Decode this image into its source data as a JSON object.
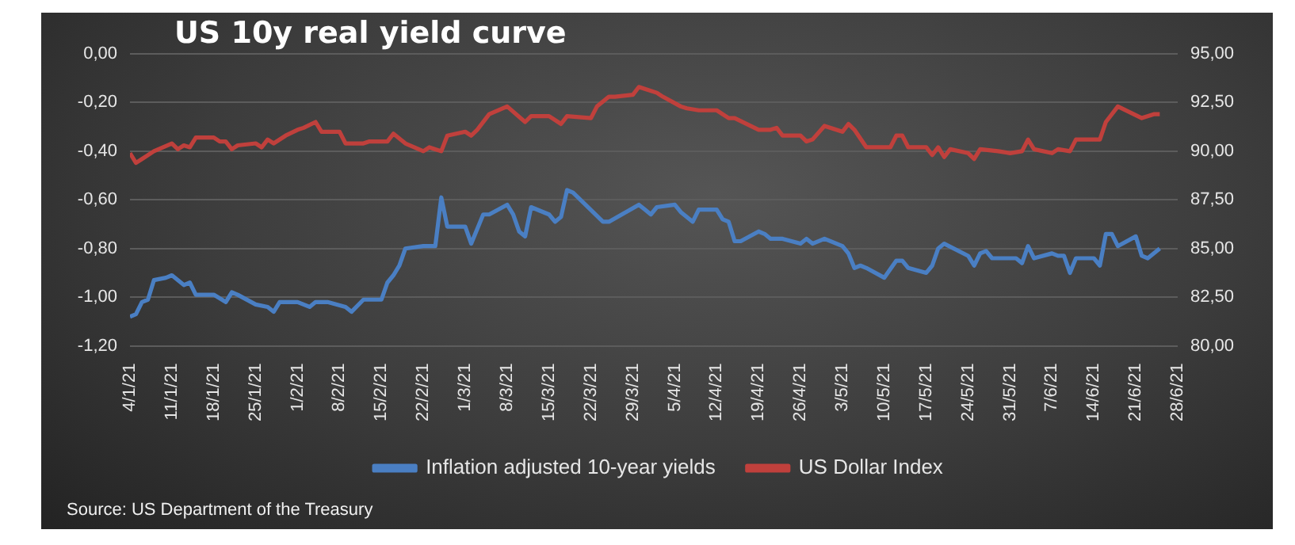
{
  "chart_data": {
    "type": "line",
    "title": "US 10y real yield curve",
    "annotations": [
      "Source: US Department of the Treasury"
    ],
    "xlim": [
      "--01-04",
      "--06-28"
    ],
    "xticks": [
      {
        "value": "--01-04",
        "label": "4/1/21"
      },
      {
        "value": "--01-11",
        "label": "11/1/21"
      },
      {
        "value": "--01-18",
        "label": "18/1/21"
      },
      {
        "value": "--01-25",
        "label": "25/1/21"
      },
      {
        "value": "--02-01",
        "label": "1/2/21"
      },
      {
        "value": "--02-08",
        "label": "8/2/21"
      },
      {
        "value": "--02-15",
        "label": "15/2/21"
      },
      {
        "value": "--02-22",
        "label": "22/2/21"
      },
      {
        "value": "--03-01",
        "label": "1/3/21"
      },
      {
        "value": "--03-08",
        "label": "8/3/21"
      },
      {
        "value": "--03-15",
        "label": "15/3/21"
      },
      {
        "value": "--03-22",
        "label": "22/3/21"
      },
      {
        "value": "--03-29",
        "label": "29/3/21"
      },
      {
        "value": "--04-05",
        "label": "5/4/21"
      },
      {
        "value": "--04-12",
        "label": "12/4/21"
      },
      {
        "value": "--04-19",
        "label": "19/4/21"
      },
      {
        "value": "--04-26",
        "label": "26/4/21"
      },
      {
        "value": "--05-03",
        "label": "3/5/21"
      },
      {
        "value": "--05-10",
        "label": "10/5/21"
      },
      {
        "value": "--05-17",
        "label": "17/5/21"
      },
      {
        "value": "--05-24",
        "label": "24/5/21"
      },
      {
        "value": "--05-31",
        "label": "31/5/21"
      },
      {
        "value": "--06-07",
        "label": "7/6/21"
      },
      {
        "value": "--06-14",
        "label": "14/6/21"
      },
      {
        "value": "--06-21",
        "label": "21/6/21"
      },
      {
        "value": "--06-28",
        "label": "28/6/21"
      }
    ],
    "ylim": [
      -1.2,
      0
    ],
    "yticks": [
      {
        "value": -1.2,
        "label": "-1,20"
      },
      {
        "value": -1,
        "label": "-1,00"
      },
      {
        "value": -0.8,
        "label": "-0,80"
      },
      {
        "value": -0.6,
        "label": "-0,60"
      },
      {
        "value": -0.4,
        "label": "-0,40"
      },
      {
        "value": -0.2,
        "label": "-0,20"
      },
      {
        "value": 0,
        "label": "0,00"
      }
    ],
    "y2lim": [
      80,
      95
    ],
    "y2ticks": [
      {
        "value": 80,
        "label": "80,00"
      },
      {
        "value": 82.5,
        "label": "82,50"
      },
      {
        "value": 85,
        "label": "85,00"
      },
      {
        "value": 87.5,
        "label": "87,50"
      },
      {
        "value": 90,
        "label": "90,00"
      },
      {
        "value": 92.5,
        "label": "92,50"
      },
      {
        "value": 95,
        "label": "95,00"
      }
    ],
    "grid": "y",
    "legend": "bottom",
    "marker": "none",
    "line_style": "solid",
    "series": [
      {
        "name": "Inflation adjusted 10-year yields",
        "color": "#4a7fc3",
        "x": [
          "--01-04",
          "--01-05",
          "--01-06",
          "--01-07",
          "--01-08",
          "--01-10",
          "--01-11",
          "--01-13",
          "--01-14",
          "--01-15",
          "--01-18",
          "--01-20",
          "--01-21",
          "--01-22",
          "--01-25",
          "--01-27",
          "--01-28",
          "--01-29",
          "--02-01",
          "--02-03",
          "--02-04",
          "--02-06",
          "--02-09",
          "--02-10",
          "--02-12",
          "--02-15",
          "--02-16",
          "--02-17",
          "--02-18",
          "--02-19",
          "--02-22",
          "--02-24",
          "--02-25",
          "--02-26",
          "--03-01",
          "--03-02",
          "--03-04",
          "--03-05",
          "--03-08",
          "--03-09",
          "--03-10",
          "--03-11",
          "--03-12",
          "--03-15",
          "--03-16",
          "--03-17",
          "--03-18",
          "--03-19",
          "--03-24",
          "--03-25",
          "--03-30",
          "--03-31",
          "--04-01",
          "--04-02",
          "--04-05",
          "--04-06",
          "--04-08",
          "--04-09",
          "--04-12",
          "--04-13",
          "--04-14",
          "--04-15",
          "--04-16",
          "--04-19",
          "--04-20",
          "--04-21",
          "--04-23",
          "--04-26",
          "--04-27",
          "--04-28",
          "--04-30",
          "--05-03",
          "--05-04",
          "--05-05",
          "--05-06",
          "--05-07",
          "--05-10",
          "--05-12",
          "--05-13",
          "--05-14",
          "--05-17",
          "--05-18",
          "--05-19",
          "--05-20",
          "--05-24",
          "--05-25",
          "--05-26",
          "--05-27",
          "--05-28",
          "--06-01",
          "--06-02",
          "--06-03",
          "--06-04",
          "--06-07",
          "--06-08",
          "--06-09",
          "--06-10",
          "--06-11",
          "--06-14",
          "--06-15",
          "--06-16",
          "--06-17",
          "--06-18",
          "--06-21",
          "--06-22",
          "--06-23",
          "--06-25"
        ],
        "values": [
          -1.08,
          -1.07,
          -1.02,
          -1.01,
          -0.93,
          -0.92,
          -0.91,
          -0.95,
          -0.94,
          -0.99,
          -0.99,
          -1.02,
          -0.98,
          -0.99,
          -1.03,
          -1.04,
          -1.06,
          -1.02,
          -1.02,
          -1.04,
          -1.02,
          -1.02,
          -1.04,
          -1.06,
          -1.01,
          -1.01,
          -0.94,
          -0.91,
          -0.87,
          -0.8,
          -0.79,
          -0.79,
          -0.59,
          -0.71,
          -0.71,
          -0.78,
          -0.66,
          -0.66,
          -0.62,
          -0.66,
          -0.73,
          -0.75,
          -0.63,
          -0.66,
          -0.69,
          -0.67,
          -0.56,
          -0.57,
          -0.69,
          -0.69,
          -0.62,
          -0.64,
          -0.66,
          -0.63,
          -0.62,
          -0.65,
          -0.69,
          -0.64,
          -0.64,
          -0.68,
          -0.69,
          -0.77,
          -0.77,
          -0.73,
          -0.74,
          -0.76,
          -0.76,
          -0.78,
          -0.76,
          -0.78,
          -0.76,
          -0.79,
          -0.82,
          -0.88,
          -0.87,
          -0.88,
          -0.92,
          -0.85,
          -0.85,
          -0.88,
          -0.9,
          -0.87,
          -0.8,
          -0.78,
          -0.83,
          -0.87,
          -0.82,
          -0.81,
          -0.84,
          -0.84,
          -0.86,
          -0.79,
          -0.84,
          -0.82,
          -0.83,
          -0.83,
          -0.9,
          -0.84,
          -0.84,
          -0.87,
          -0.74,
          -0.74,
          -0.79,
          -0.75,
          -0.83,
          -0.84,
          -0.8
        ]
      },
      {
        "name": "US Dollar Index",
        "color": "#c0403c",
        "axis": "y2",
        "x": [
          "--01-04",
          "--01-05",
          "--01-06",
          "--01-08",
          "--01-11",
          "--01-12",
          "--01-13",
          "--01-14",
          "--01-15",
          "--01-18",
          "--01-19",
          "--01-20",
          "--01-21",
          "--01-22",
          "--01-25",
          "--01-26",
          "--01-27",
          "--01-28",
          "--01-30",
          "--02-01",
          "--02-02",
          "--02-04",
          "--02-05",
          "--02-08",
          "--02-09",
          "--02-12",
          "--02-13",
          "--02-16",
          "--02-17",
          "--02-19",
          "--02-22",
          "--02-23",
          "--02-24",
          "--02-25",
          "--02-26",
          "--03-01",
          "--03-02",
          "--03-03",
          "--03-05",
          "--03-08",
          "--03-11",
          "--03-12",
          "--03-15",
          "--03-17",
          "--03-18",
          "--03-22",
          "--03-23",
          "--03-25",
          "--03-26",
          "--03-29",
          "--03-30",
          "--03-31",
          "--04-02",
          "--04-03",
          "--04-06",
          "--04-07",
          "--04-09",
          "--04-12",
          "--04-14",
          "--04-15",
          "--04-19",
          "--04-20",
          "--04-21",
          "--04-22",
          "--04-23",
          "--04-26",
          "--04-27",
          "--04-28",
          "--04-30",
          "--05-03",
          "--05-04",
          "--05-05",
          "--05-07",
          "--05-11",
          "--05-12",
          "--05-13",
          "--05-14",
          "--05-17",
          "--05-18",
          "--05-19",
          "--05-20",
          "--05-21",
          "--05-24",
          "--05-25",
          "--05-26",
          "--05-29",
          "--05-31",
          "--06-02",
          "--06-03",
          "--06-04",
          "--06-07",
          "--06-08",
          "--06-10",
          "--06-11",
          "--06-15",
          "--06-16",
          "--06-18",
          "--06-22",
          "--06-24",
          "--06-25"
        ],
        "values": [
          89.9,
          89.4,
          89.6,
          90,
          90.4,
          90.1,
          90.3,
          90.2,
          90.7,
          90.7,
          90.5,
          90.5,
          90.1,
          90.3,
          90.4,
          90.2,
          90.6,
          90.4,
          90.8,
          91.1,
          91.2,
          91.5,
          91,
          91,
          90.4,
          90.4,
          90.5,
          90.5,
          90.9,
          90.4,
          90,
          90.2,
          90.1,
          90,
          90.8,
          91,
          90.8,
          91.1,
          91.9,
          92.3,
          91.5,
          91.8,
          91.8,
          91.4,
          91.8,
          91.7,
          92.3,
          92.8,
          92.8,
          92.9,
          93.3,
          93.2,
          93,
          92.8,
          92.3,
          92.2,
          92.1,
          92.1,
          91.7,
          91.7,
          91.1,
          91.1,
          91.1,
          91.2,
          90.8,
          90.8,
          90.5,
          90.6,
          91.3,
          91,
          91.4,
          91.1,
          90.2,
          90.2,
          90.8,
          90.8,
          90.2,
          90.2,
          89.8,
          90.2,
          89.7,
          90.1,
          89.9,
          89.6,
          90.1,
          90,
          89.9,
          90,
          90.6,
          90.1,
          89.9,
          90.1,
          90,
          90.6,
          90.6,
          91.5,
          92.3,
          91.7,
          91.9,
          91.9
        ]
      }
    ]
  }
}
